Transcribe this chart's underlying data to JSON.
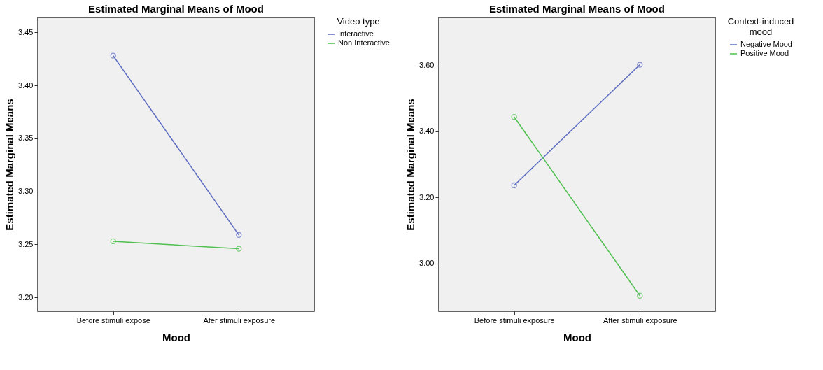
{
  "chart_data": [
    {
      "type": "line",
      "title": "Estimated Marginal Means of Mood",
      "xlabel": "Mood",
      "ylabel": "Estimated Marginal Means",
      "legend_title": "Video type",
      "categories": [
        "Before stimuli expose",
        "Afer stimuli exposure"
      ],
      "series": [
        {
          "name": "Interactive",
          "color": "#5b6bbf",
          "values": [
            3.428,
            3.259
          ]
        },
        {
          "name": "Non Interactive",
          "color": "#4fbf4f",
          "values": [
            3.253,
            3.246
          ]
        }
      ],
      "ylim": [
        3.187,
        3.464
      ],
      "yticks": [
        {
          "value": 3.2,
          "label": "3.20"
        },
        {
          "value": 3.25,
          "label": "3.25"
        },
        {
          "value": 3.3,
          "label": "3.30"
        },
        {
          "value": 3.35,
          "label": "3.35"
        },
        {
          "value": 3.4,
          "label": "3.40"
        },
        {
          "value": 3.45,
          "label": "3.45"
        }
      ],
      "grid": false,
      "legend": "top right",
      "marker": "circle",
      "line_style": "solid"
    },
    {
      "type": "line",
      "title": "Estimated Marginal Means of Mood",
      "xlabel": "Mood",
      "ylabel": "Estimated Marginal Means",
      "legend_title": "Context-induced mood",
      "categories": [
        "Before stimuli exposure",
        "After stimuli exposure"
      ],
      "series": [
        {
          "name": "Negative Mood",
          "color": "#5b6bbf",
          "values": [
            3.237,
            3.602
          ]
        },
        {
          "name": "Positive Mood",
          "color": "#4fbf4f",
          "values": [
            3.444,
            2.903
          ]
        }
      ],
      "ylim": [
        2.856,
        3.745
      ],
      "yticks": [
        {
          "value": 3.0,
          "label": "3.00"
        },
        {
          "value": 3.2,
          "label": "3.20"
        },
        {
          "value": 3.4,
          "label": "3.40"
        },
        {
          "value": 3.6,
          "label": "3.60"
        }
      ],
      "grid": false,
      "legend": "top right",
      "marker": "circle",
      "line_style": "solid"
    }
  ]
}
